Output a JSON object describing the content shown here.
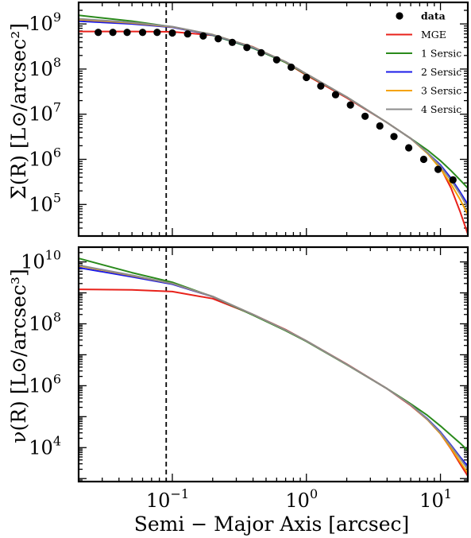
{
  "chart_data": [
    {
      "type": "line",
      "panel": "top",
      "ylabel": "Σ(R) [L⊙/arcsec²]",
      "xlabel": "",
      "xscale": "log",
      "yscale": "log",
      "xlim": [
        0.02,
        16
      ],
      "ylim": [
        20000.0,
        3000000000.0
      ],
      "vline_x": 0.09,
      "legend": {
        "placement": "top-right"
      },
      "yticks": [
        {
          "base": "10",
          "exp": "9",
          "value": 1000000000.0
        },
        {
          "base": "10",
          "exp": "8",
          "value": 100000000.0
        },
        {
          "base": "10",
          "exp": "7",
          "value": 10000000.0
        },
        {
          "base": "10",
          "exp": "6",
          "value": 1000000.0
        },
        {
          "base": "10",
          "exp": "5",
          "value": 100000.0
        }
      ],
      "scatter": {
        "name": "data",
        "color": "#000000",
        "x": [
          0.028,
          0.036,
          0.046,
          0.06,
          0.077,
          0.1,
          0.13,
          0.17,
          0.22,
          0.28,
          0.36,
          0.46,
          0.6,
          0.77,
          1.0,
          1.28,
          1.65,
          2.13,
          2.74,
          3.53,
          4.5,
          5.8,
          7.5,
          9.6,
          12.4
        ],
        "y": [
          650000000.0,
          650000000.0,
          650000000.0,
          650000000.0,
          650000000.0,
          630000000.0,
          600000000.0,
          540000000.0,
          470000000.0,
          390000000.0,
          300000000.0,
          230000000.0,
          160000000.0,
          110000000.0,
          65000000.0,
          42000000.0,
          27000000.0,
          16000000.0,
          9000000.0,
          5500000.0,
          3200000.0,
          1800000.0,
          1000000.0,
          600000.0,
          350000.0
        ]
      },
      "series": [
        {
          "name": "MGE",
          "color": "#e8221b",
          "x": [
            0.02,
            0.05,
            0.1,
            0.2,
            0.4,
            0.7,
            1.0,
            2.0,
            4.0,
            6.0,
            8.0,
            10.0,
            12.0,
            14.0,
            16.0
          ],
          "y": [
            680000000.0,
            680000000.0,
            670000000.0,
            560000000.0,
            310000000.0,
            140000000.0,
            73000000.0,
            23000000.0,
            6500000.0,
            2900000.0,
            1400000.0,
            660000.0,
            230000.0,
            70000.0,
            22000.0
          ]
        },
        {
          "name": "1 Sersic",
          "color": "#2a8a1c",
          "x": [
            0.02,
            0.05,
            0.1,
            0.2,
            0.4,
            0.7,
            1.0,
            2.0,
            4.0,
            6.0,
            8.0,
            10.0,
            12.0,
            14.0,
            16.0
          ],
          "y": [
            1550000000.0,
            1150000000.0,
            860000000.0,
            560000000.0,
            290000000.0,
            140000000.0,
            76000000.0,
            24000000.0,
            6500000.0,
            2900000.0,
            1600000.0,
            930000.0,
            560000.0,
            350000.0,
            230000.0
          ]
        },
        {
          "name": "2 Sersic",
          "color": "#1c1ce8",
          "x": [
            0.02,
            0.05,
            0.1,
            0.2,
            0.4,
            0.7,
            1.0,
            2.0,
            4.0,
            6.0,
            8.0,
            10.0,
            12.0,
            14.0,
            16.0
          ],
          "y": [
            1150000000.0,
            1000000000.0,
            840000000.0,
            570000000.0,
            300000000.0,
            145000000.0,
            78000000.0,
            24000000.0,
            6500000.0,
            2900000.0,
            1400000.0,
            750000.0,
            380000.0,
            190000.0,
            100000.0
          ]
        },
        {
          "name": "3 Sersic",
          "color": "#f5a300",
          "x": [
            0.02,
            0.05,
            0.1,
            0.2,
            0.4,
            0.7,
            1.0,
            2.0,
            4.0,
            6.0,
            8.0,
            10.0,
            12.0,
            14.0,
            16.0
          ],
          "y": [
            1250000000.0,
            1050000000.0,
            860000000.0,
            580000000.0,
            305000000.0,
            145000000.0,
            78000000.0,
            24000000.0,
            6500000.0,
            2900000.0,
            1350000.0,
            620000.0,
            280000.0,
            130000.0,
            60000.0
          ]
        },
        {
          "name": "4 Sersic",
          "color": "#8c8c8c",
          "x": [
            0.02,
            0.05,
            0.1,
            0.2,
            0.4,
            0.7,
            1.0,
            2.0,
            4.0,
            6.0,
            8.0,
            10.0,
            12.0,
            14.0,
            16.0
          ],
          "y": [
            1300000000.0,
            1080000000.0,
            870000000.0,
            580000000.0,
            305000000.0,
            145000000.0,
            78000000.0,
            24000000.0,
            6500000.0,
            2900000.0,
            1400000.0,
            700000.0,
            340000.0,
            170000.0,
            85000.0
          ]
        }
      ]
    },
    {
      "type": "line",
      "panel": "bottom",
      "ylabel": "ν(R) [L⊙/arcsec³]",
      "xlabel": "Semi − Major Axis [arcsec]",
      "xscale": "log",
      "yscale": "log",
      "xlim": [
        0.02,
        16
      ],
      "ylim": [
        800,
        30000000000.0
      ],
      "vline_x": 0.09,
      "yticks": [
        {
          "base": "10",
          "exp": "10",
          "value": 10000000000.0
        },
        {
          "base": "10",
          "exp": "8",
          "value": 100000000.0
        },
        {
          "base": "10",
          "exp": "6",
          "value": 1000000.0
        },
        {
          "base": "10",
          "exp": "4",
          "value": 10000.0
        }
      ],
      "xticks": [
        {
          "base": "10",
          "exp": "−1",
          "value": 0.1
        },
        {
          "base": "10",
          "exp": "0",
          "value": 1
        },
        {
          "base": "10",
          "exp": "1",
          "value": 10
        }
      ],
      "series": [
        {
          "name": "MGE",
          "color": "#e8221b",
          "x": [
            0.02,
            0.05,
            0.1,
            0.2,
            0.4,
            0.7,
            1.0,
            2.0,
            4.0,
            6.0,
            8.0,
            10.0,
            12.0,
            14.0,
            16.0
          ],
          "y": [
            1300000000.0,
            1250000000.0,
            1100000000.0,
            650000000.0,
            200000000.0,
            65000000.0,
            28000000.0,
            5000000.0,
            800000.0,
            230000.0,
            80000.0,
            28000.0,
            9000.0,
            3000.0,
            1200.0
          ]
        },
        {
          "name": "1 Sersic",
          "color": "#2a8a1c",
          "x": [
            0.02,
            0.05,
            0.1,
            0.2,
            0.4,
            0.7,
            1.0,
            2.0,
            4.0,
            6.0,
            8.0,
            10.0,
            12.0,
            14.0,
            16.0
          ],
          "y": [
            13000000000.0,
            4500000000.0,
            2200000000.0,
            750000000.0,
            190000000.0,
            60000000.0,
            27000000.0,
            4800000.0,
            800000.0,
            260000.0,
            110000.0,
            50000.0,
            25000.0,
            14000.0,
            8000.0
          ]
        },
        {
          "name": "2 Sersic",
          "color": "#1c1ce8",
          "x": [
            0.02,
            0.05,
            0.1,
            0.2,
            0.4,
            0.7,
            1.0,
            2.0,
            4.0,
            6.0,
            8.0,
            10.0,
            12.0,
            14.0,
            16.0
          ],
          "y": [
            6500000000.0,
            3300000000.0,
            1900000000.0,
            750000000.0,
            200000000.0,
            63000000.0,
            28000000.0,
            4900000.0,
            800000.0,
            240000.0,
            85000.0,
            32000.0,
            12000.0,
            5000.0,
            2500.0
          ]
        },
        {
          "name": "3 Sersic",
          "color": "#f5a300",
          "x": [
            0.02,
            0.05,
            0.1,
            0.2,
            0.4,
            0.7,
            1.0,
            2.0,
            4.0,
            6.0,
            8.0,
            10.0,
            12.0,
            14.0,
            16.0
          ],
          "y": [
            7500000000.0,
            3600000000.0,
            2000000000.0,
            760000000.0,
            200000000.0,
            63000000.0,
            28000000.0,
            4900000.0,
            800000.0,
            240000.0,
            80000.0,
            28000.0,
            9500.0,
            3500.0,
            1500.0
          ]
        },
        {
          "name": "4 Sersic",
          "color": "#8c8c8c",
          "x": [
            0.02,
            0.05,
            0.1,
            0.2,
            0.4,
            0.7,
            1.0,
            2.0,
            4.0,
            6.0,
            8.0,
            10.0,
            12.0,
            14.0,
            16.0
          ],
          "y": [
            7800000000.0,
            3700000000.0,
            2000000000.0,
            770000000.0,
            200000000.0,
            63000000.0,
            28000000.0,
            4900000.0,
            800000.0,
            240000.0,
            82000.0,
            30000.0,
            11000.0,
            4500.0,
            2000.0
          ]
        }
      ]
    }
  ]
}
